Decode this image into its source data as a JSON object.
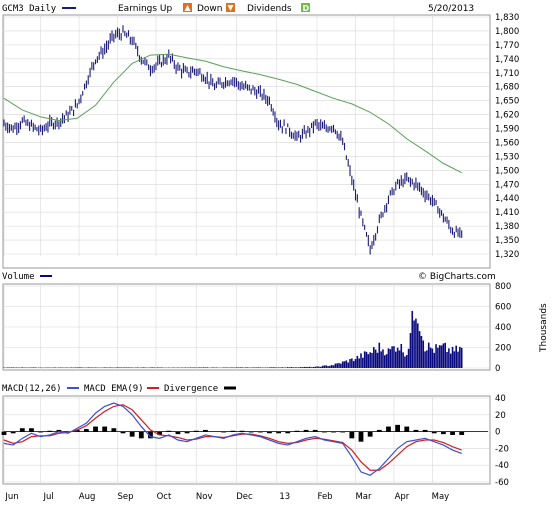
{
  "header": {
    "symbol_label": "GCM3 Daily",
    "earnings_label": "Earnings Up",
    "earnings_up_icon": "up-triangle-icon",
    "down_label": "Down",
    "earnings_down_icon": "down-triangle-icon",
    "dividends_label": "Dividends",
    "dividends_icon": "d-badge-icon",
    "date": "5/20/2013"
  },
  "colors": {
    "price": "#1a1a7a",
    "sma": "#5aa05a",
    "volume": "#0a0a80",
    "macd": "#3b4fd8",
    "ema": "#d02020",
    "divergence": "#000000",
    "grid": "#d8d8d8",
    "up_icon": "#e07020",
    "down_icon": "#e07020",
    "div_icon": "#6cc040"
  },
  "volume_panel": {
    "label": "Volume",
    "units": "Thousands",
    "watermark": "© BigCharts.com"
  },
  "macd_panel": {
    "label": "MACD(12,26)",
    "ema_label": "MACD EMA(9)",
    "div_label": "Divergence"
  },
  "chart_data": [
    {
      "type": "line",
      "panel": "price",
      "ylim": [
        1320,
        1830
      ],
      "yticks": [
        "1,830",
        "1,800",
        "1,770",
        "1,740",
        "1,710",
        "1,680",
        "1,650",
        "1,620",
        "1,590",
        "1,560",
        "1,530",
        "1,500",
        "1,470",
        "1,440",
        "1,410",
        "1,380",
        "1,350",
        "1,320"
      ],
      "series": [
        {
          "key": "close",
          "x": [
            0,
            5,
            10,
            15,
            20,
            25,
            30,
            35,
            40,
            45,
            50,
            55,
            60,
            65,
            70,
            75,
            80,
            85,
            90,
            95,
            100,
            105,
            110,
            115,
            120,
            125,
            130,
            135,
            140,
            145,
            150,
            155,
            160,
            165,
            170,
            175,
            180,
            185,
            190,
            195,
            200,
            205,
            210,
            215,
            220,
            225,
            230,
            235,
            240,
            245,
            250
          ],
          "values": [
            1600,
            1590,
            1605,
            1595,
            1585,
            1600,
            1605,
            1620,
            1640,
            1690,
            1740,
            1760,
            1790,
            1795,
            1780,
            1740,
            1720,
            1730,
            1745,
            1720,
            1710,
            1715,
            1700,
            1680,
            1690,
            1695,
            1680,
            1675,
            1665,
            1650,
            1600,
            1590,
            1570,
            1580,
            1600,
            1590,
            1595,
            1560,
            1480,
            1400,
            1330,
            1390,
            1440,
            1470,
            1480,
            1470,
            1450,
            1430,
            1400,
            1370,
            1360
          ]
        },
        {
          "key": "sma",
          "x": [
            0,
            10,
            20,
            30,
            40,
            50,
            60,
            70,
            80,
            90,
            100,
            110,
            120,
            130,
            140,
            150,
            160,
            170,
            180,
            190,
            200,
            210,
            220,
            230,
            240,
            250
          ],
          "values": [
            1655,
            1630,
            1615,
            1607,
            1612,
            1640,
            1690,
            1730,
            1748,
            1750,
            1742,
            1735,
            1723,
            1714,
            1706,
            1696,
            1685,
            1670,
            1655,
            1643,
            1625,
            1600,
            1568,
            1542,
            1515,
            1495
          ]
        }
      ]
    },
    {
      "type": "bar",
      "panel": "volume",
      "ylim": [
        0,
        800
      ],
      "yticks": [
        "800",
        "600",
        "400",
        "200",
        "0"
      ],
      "x": [
        0,
        10,
        20,
        30,
        40,
        50,
        60,
        70,
        80,
        90,
        100,
        110,
        120,
        130,
        140,
        150,
        160,
        170,
        180,
        190,
        200,
        205,
        210,
        215,
        220,
        225,
        230,
        235,
        240,
        245,
        250,
        255,
        260
      ],
      "values": [
        4,
        5,
        4,
        4,
        5,
        4,
        5,
        4,
        5,
        4,
        4,
        5,
        4,
        5,
        5,
        6,
        8,
        10,
        30,
        80,
        150,
        200,
        160,
        230,
        140,
        630,
        220,
        180,
        200,
        160,
        190,
        210,
        200
      ]
    },
    {
      "type": "line",
      "panel": "macd",
      "ylim": [
        -60,
        40
      ],
      "yticks": [
        "40",
        "20",
        "0",
        "-20",
        "-40",
        "-60"
      ],
      "x": [
        0,
        5,
        10,
        15,
        20,
        25,
        30,
        35,
        40,
        45,
        50,
        55,
        60,
        65,
        70,
        75,
        80,
        85,
        90,
        95,
        100,
        105,
        110,
        115,
        120,
        125,
        130,
        135,
        140,
        145,
        150,
        155,
        160,
        165,
        170,
        175,
        180,
        185,
        190,
        195,
        200,
        205,
        210,
        215,
        220,
        225,
        230,
        235,
        240,
        245,
        250
      ],
      "series": [
        {
          "key": "macd",
          "values": [
            -14,
            -16,
            -8,
            -2,
            -6,
            -4,
            0,
            -2,
            4,
            10,
            22,
            30,
            34,
            30,
            20,
            6,
            -6,
            -8,
            -4,
            -10,
            -12,
            -8,
            -4,
            -6,
            -8,
            -4,
            -2,
            -4,
            -6,
            -10,
            -14,
            -16,
            -12,
            -8,
            -6,
            -10,
            -12,
            -14,
            -30,
            -48,
            -52,
            -44,
            -32,
            -20,
            -12,
            -10,
            -8,
            -12,
            -16,
            -22,
            -26
          ]
        },
        {
          "key": "ema",
          "values": [
            -10,
            -14,
            -12,
            -6,
            -5,
            -5,
            -2,
            -1,
            2,
            7,
            16,
            24,
            30,
            32,
            26,
            14,
            2,
            -4,
            -5,
            -7,
            -10,
            -9,
            -6,
            -6,
            -7,
            -5,
            -3,
            -3,
            -5,
            -8,
            -12,
            -14,
            -13,
            -10,
            -8,
            -9,
            -11,
            -13,
            -22,
            -36,
            -46,
            -46,
            -38,
            -28,
            -18,
            -12,
            -10,
            -10,
            -13,
            -18,
            -22
          ]
        }
      ],
      "divergence": [
        -4,
        -2,
        4,
        4,
        -1,
        1,
        2,
        -1,
        2,
        3,
        6,
        6,
        4,
        -2,
        -6,
        -8,
        -8,
        -4,
        1,
        -3,
        -2,
        1,
        2,
        0,
        -1,
        1,
        1,
        -1,
        -1,
        -2,
        -2,
        -2,
        1,
        2,
        2,
        -1,
        -1,
        -1,
        -8,
        -12,
        -6,
        2,
        6,
        8,
        6,
        2,
        2,
        -2,
        -3,
        -4,
        -4
      ]
    }
  ],
  "x_axis": {
    "labels": [
      "Jun",
      "Jul",
      "Aug",
      "Sep",
      "Oct",
      "Nov",
      "Dec",
      "13",
      "Feb",
      "Mar",
      "Apr",
      "May"
    ],
    "positions": [
      0,
      20,
      41,
      62,
      83,
      105,
      127,
      149,
      171,
      192,
      213,
      234
    ]
  }
}
